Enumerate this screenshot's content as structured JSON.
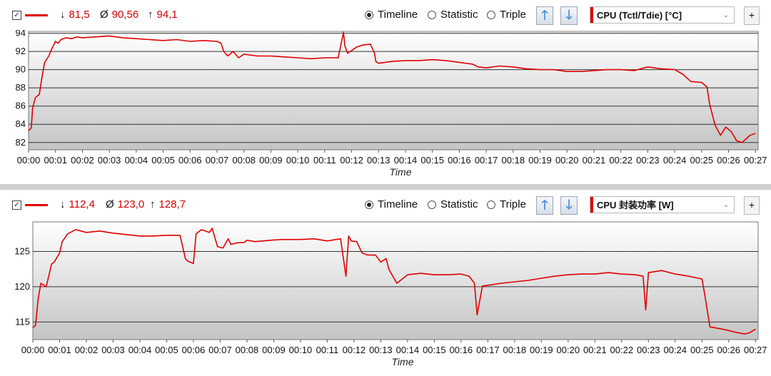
{
  "colors": {
    "series": "#e00000",
    "grid": "#333333"
  },
  "panels": [
    {
      "stats": {
        "min_symbol": "↓",
        "min": "81,5",
        "avg_symbol": "Ø",
        "avg": "90,56",
        "max_symbol": "↑",
        "max": "94,1"
      },
      "modes": [
        {
          "label": "Timeline",
          "selected": true
        },
        {
          "label": "Statistic",
          "selected": false
        },
        {
          "label": "Triple",
          "selected": false
        }
      ],
      "sensor": "CPU (Tctl/Tdie) [°C]",
      "plus": "+",
      "up_arrow": "🡑",
      "down_arrow": "🡓",
      "checkbox": "✓"
    },
    {
      "stats": {
        "min_symbol": "↓",
        "min": "112,4",
        "avg_symbol": "Ø",
        "avg": "123,0",
        "max_symbol": "↑",
        "max": "128,7"
      },
      "modes": [
        {
          "label": "Timeline",
          "selected": true
        },
        {
          "label": "Statistic",
          "selected": false
        },
        {
          "label": "Triple",
          "selected": false
        }
      ],
      "sensor": "CPU 封装功率 [W]",
      "plus": "+",
      "up_arrow": "🡑",
      "down_arrow": "🡓",
      "checkbox": "✓"
    }
  ],
  "chart_data": [
    {
      "type": "line",
      "xlabel": "Time",
      "ylabel": "",
      "ylim": [
        81.2,
        94.2
      ],
      "yticks": [
        82,
        84,
        86,
        88,
        90,
        92,
        94
      ],
      "xticks": [
        "00:00",
        "00:01",
        "00:02",
        "00:03",
        "00:04",
        "00:05",
        "00:06",
        "00:07",
        "00:08",
        "00:09",
        "00:10",
        "00:11",
        "00:12",
        "00:13",
        "00:14",
        "00:15",
        "00:16",
        "00:17",
        "00:18",
        "00:19",
        "00:20",
        "00:21",
        "00:22",
        "00:23",
        "00:24",
        "00:25",
        "00:26",
        "00:27"
      ],
      "xlim": [
        0,
        27.1
      ],
      "grid": true,
      "series": [
        {
          "x": [
            0,
            0.1,
            0.15,
            0.25,
            0.4,
            0.5,
            0.6,
            0.75,
            0.85,
            1.0,
            1.1,
            1.2,
            1.4,
            1.6,
            1.8,
            2.0,
            2.5,
            3.0,
            3.5,
            4.0,
            4.5,
            5.0,
            5.5,
            6.0,
            6.5,
            7.0,
            7.15,
            7.25,
            7.4,
            7.6,
            7.8,
            8.0,
            8.5,
            9.0,
            9.5,
            10.0,
            10.5,
            11.0,
            11.5,
            11.7,
            11.75,
            11.85,
            12.0,
            12.2,
            12.4,
            12.7,
            12.85,
            12.9,
            13.0,
            13.5,
            14.0,
            14.5,
            15.0,
            15.5,
            16.0,
            16.5,
            16.7,
            17.0,
            17.5,
            18.0,
            18.5,
            19.0,
            19.5,
            20.0,
            20.5,
            21.0,
            21.5,
            22.0,
            22.5,
            23.0,
            23.5,
            24.0,
            24.3,
            24.6,
            25.0,
            25.2,
            25.3,
            25.5,
            25.7,
            25.9,
            26.1,
            26.3,
            26.5,
            26.8,
            27.0
          ],
          "y": [
            83.3,
            83.6,
            85.8,
            86.9,
            87.3,
            89.2,
            90.8,
            91.5,
            92.2,
            93.1,
            92.9,
            93.3,
            93.5,
            93.4,
            93.6,
            93.5,
            93.6,
            93.7,
            93.5,
            93.4,
            93.3,
            93.2,
            93.3,
            93.1,
            93.2,
            93.1,
            92.9,
            92.0,
            91.5,
            92.0,
            91.3,
            91.7,
            91.5,
            91.5,
            91.4,
            91.3,
            91.2,
            91.3,
            91.3,
            94.1,
            92.6,
            91.8,
            92.1,
            92.5,
            92.7,
            92.8,
            91.8,
            90.9,
            90.7,
            90.9,
            91.0,
            91.0,
            91.1,
            91.0,
            90.8,
            90.6,
            90.3,
            90.2,
            90.4,
            90.3,
            90.1,
            90.0,
            90.0,
            89.8,
            89.8,
            89.9,
            90.0,
            90.0,
            89.9,
            90.3,
            90.1,
            90.0,
            89.5,
            88.7,
            88.6,
            88.1,
            86.2,
            83.9,
            82.8,
            83.7,
            83.2,
            82.2,
            82.0,
            82.8,
            83.0
          ]
        }
      ]
    },
    {
      "type": "line",
      "xlabel": "Time",
      "ylabel": "",
      "ylim": [
        112.5,
        129.2
      ],
      "yticks": [
        115,
        120,
        125
      ],
      "xticks": [
        "00:00",
        "00:01",
        "00:02",
        "00:03",
        "00:04",
        "00:05",
        "00:06",
        "00:07",
        "00:08",
        "00:09",
        "00:10",
        "00:11",
        "00:12",
        "00:13",
        "00:14",
        "00:15",
        "00:16",
        "00:17",
        "00:18",
        "00:19",
        "00:20",
        "00:21",
        "00:22",
        "00:23",
        "00:24",
        "00:25",
        "00:26",
        "00:27"
      ],
      "xlim": [
        0,
        27.1
      ],
      "grid": true,
      "series": [
        {
          "x": [
            0,
            0.1,
            0.2,
            0.3,
            0.5,
            0.7,
            0.8,
            1.0,
            1.1,
            1.3,
            1.6,
            2.0,
            2.5,
            3.0,
            3.5,
            4.0,
            4.5,
            5.0,
            5.5,
            5.7,
            5.8,
            6.0,
            6.1,
            6.3,
            6.6,
            6.7,
            6.9,
            7.1,
            7.3,
            7.4,
            7.6,
            7.9,
            8.0,
            8.3,
            8.6,
            8.9,
            9.3,
            10.0,
            10.5,
            11.0,
            11.5,
            11.7,
            11.8,
            11.9,
            12.1,
            12.3,
            12.5,
            12.8,
            13.0,
            13.2,
            13.3,
            13.6,
            14.0,
            14.5,
            15.0,
            15.5,
            16.0,
            16.3,
            16.5,
            16.6,
            16.8,
            17.0,
            17.5,
            18.0,
            18.5,
            19.0,
            19.5,
            20.0,
            20.5,
            21.0,
            21.5,
            22.0,
            22.5,
            22.8,
            22.9,
            23.0,
            23.5,
            24.0,
            24.5,
            25.0,
            25.1,
            25.3,
            25.6,
            26.0,
            26.3,
            26.6,
            26.8,
            27.0
          ],
          "y": [
            114.2,
            114.5,
            118.3,
            120.5,
            120.0,
            123.2,
            123.5,
            124.8,
            126.4,
            127.5,
            128.1,
            127.7,
            127.9,
            127.6,
            127.4,
            127.2,
            127.2,
            127.3,
            127.3,
            124.0,
            123.6,
            123.3,
            127.5,
            128.1,
            127.7,
            128.3,
            125.7,
            125.5,
            126.8,
            126.0,
            126.2,
            126.3,
            126.6,
            126.4,
            126.5,
            126.6,
            126.7,
            126.7,
            126.8,
            126.5,
            126.8,
            121.5,
            127.2,
            126.5,
            126.4,
            124.8,
            124.5,
            124.5,
            123.5,
            124.0,
            122.5,
            120.5,
            121.7,
            121.9,
            121.7,
            121.7,
            121.8,
            121.5,
            120.5,
            116.0,
            120.1,
            120.2,
            120.5,
            120.7,
            120.9,
            121.2,
            121.5,
            121.7,
            121.8,
            121.8,
            122.0,
            121.8,
            121.7,
            121.5,
            116.7,
            122.0,
            122.3,
            121.8,
            121.5,
            121.1,
            119.0,
            114.3,
            114.1,
            113.8,
            113.5,
            113.3,
            113.5,
            114.0
          ]
        }
      ]
    }
  ]
}
